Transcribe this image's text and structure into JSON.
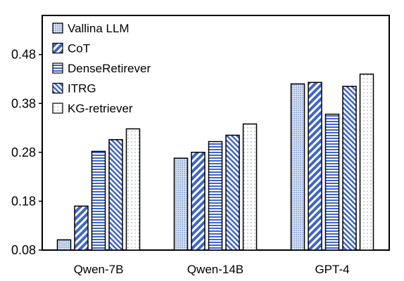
{
  "chart_data": {
    "type": "bar",
    "title": "",
    "xlabel": "",
    "ylabel": "",
    "ylim": [
      0.08,
      0.56
    ],
    "yticks": [
      0.08,
      0.18,
      0.28,
      0.38,
      0.48
    ],
    "ytick_labels": [
      "0.08",
      "0.18",
      "0.28",
      "0.38",
      "0.48"
    ],
    "categories": [
      "Qwen-7B",
      "Qwen-14B",
      "GPT-4"
    ],
    "legend_position": "top-left",
    "grid": false,
    "series": [
      {
        "name": "Vallina LLM",
        "pattern": "dots-dense",
        "color": "#d6e4f7",
        "values": [
          0.101,
          0.268,
          0.42
        ]
      },
      {
        "name": "CoT",
        "pattern": "diagonal-wide",
        "color": "#3f66c7",
        "values": [
          0.17,
          0.28,
          0.423
        ]
      },
      {
        "name": "DenseRetirever",
        "pattern": "horizontal",
        "color": "#3f66c7",
        "values": [
          0.282,
          0.302,
          0.358
        ]
      },
      {
        "name": "ITRG",
        "pattern": "diagonal-narrow",
        "color": "#3f66c7",
        "values": [
          0.306,
          0.315,
          0.415
        ]
      },
      {
        "name": "KG-retriever",
        "pattern": "dots-sparse",
        "color": "#ffffff",
        "values": [
          0.328,
          0.338,
          0.44
        ]
      }
    ]
  }
}
